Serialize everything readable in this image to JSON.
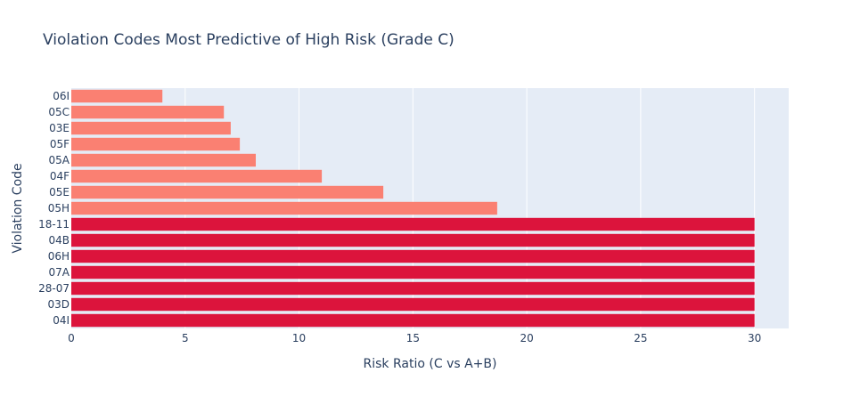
{
  "chart_data": {
    "type": "bar",
    "orientation": "horizontal",
    "title": "Violation Codes Most Predictive of High Risk (Grade C)",
    "xlabel": "Risk Ratio (C vs A+B)",
    "ylabel": "Violation Code",
    "xlim": [
      0,
      31.5
    ],
    "xticks": [
      0,
      5,
      10,
      15,
      20,
      25,
      30
    ],
    "grid": true,
    "categories": [
      "06I",
      "05C",
      "03E",
      "05F",
      "05A",
      "04F",
      "05E",
      "05H",
      "18-11",
      "04B",
      "06H",
      "07A",
      "28-07",
      "03D",
      "04I"
    ],
    "values": [
      4.0,
      6.7,
      7.0,
      7.4,
      8.1,
      11.0,
      13.7,
      18.7,
      30,
      30,
      30,
      30,
      30,
      30,
      30
    ],
    "bar_colors": [
      "#FA8072",
      "#FA8072",
      "#FA8072",
      "#FA8072",
      "#FA8072",
      "#FA8072",
      "#FA8072",
      "#FA8072",
      "#DC143C",
      "#DC143C",
      "#DC143C",
      "#DC143C",
      "#DC143C",
      "#DC143C",
      "#DC143C"
    ],
    "plot_background": "#E5ECF6",
    "grid_color": "#FFFFFF",
    "text_color": "#2a3f5f"
  }
}
